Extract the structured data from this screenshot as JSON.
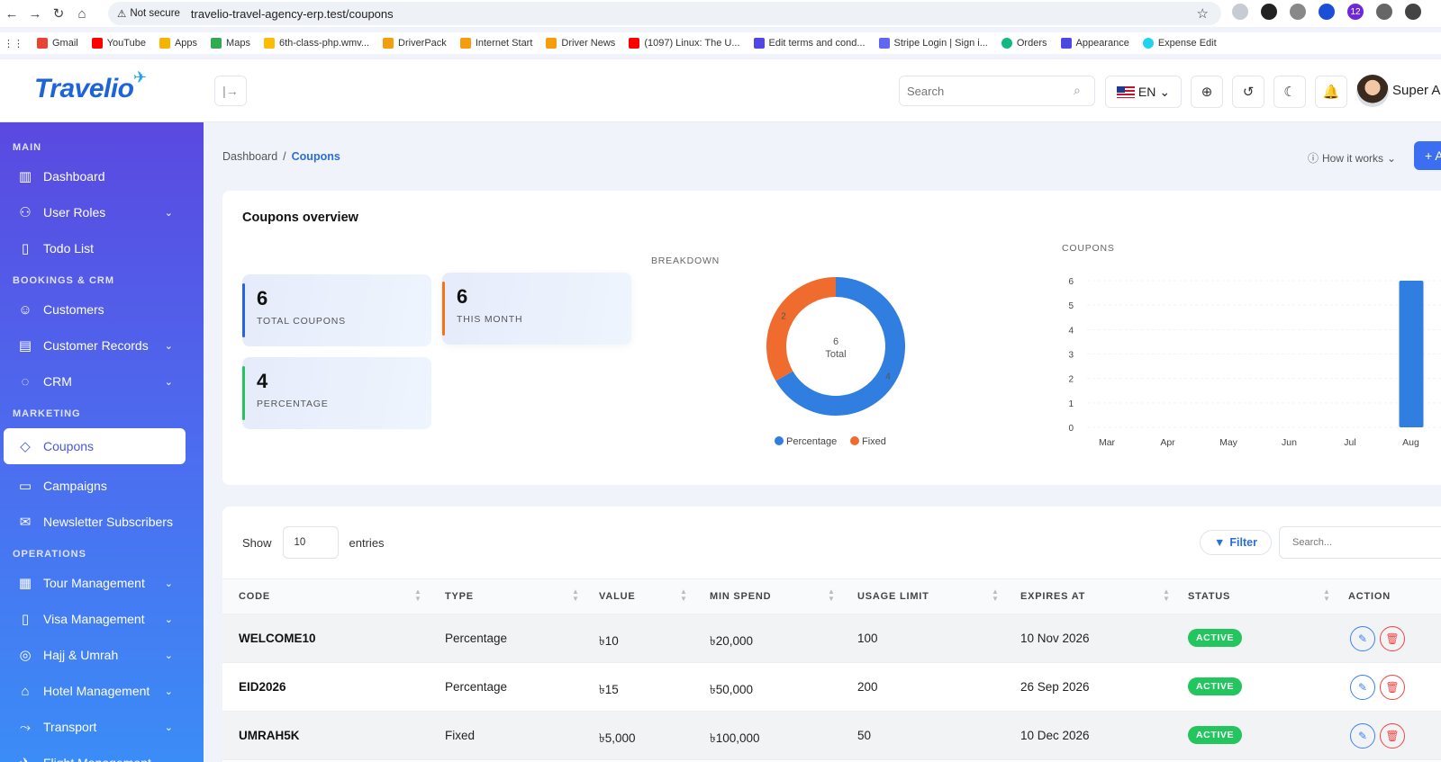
{
  "browser": {
    "not_secure": "Not secure",
    "url": "travelio-travel-agency-erp.test/coupons",
    "bookmarks": [
      "Gmail",
      "YouTube",
      "Apps",
      "Maps",
      "6th-class-php.wmv...",
      "DriverPack",
      "Internet Start",
      "Driver News",
      "(1097) Linux: The U...",
      "Edit terms and cond...",
      "Stripe Login | Sign i...",
      "Orders",
      "Appearance",
      "Expense Edit"
    ],
    "ext_badge": "12"
  },
  "header": {
    "logo": "Travelio",
    "search_placeholder": "Search",
    "lang": "EN",
    "user_name": "Super Ad"
  },
  "sidebar": {
    "sections": [
      {
        "title": "MAIN",
        "items": [
          {
            "label": "Dashboard",
            "icon": "chart-icon",
            "chev": false
          },
          {
            "label": "User Roles",
            "icon": "users-icon",
            "chev": true
          },
          {
            "label": "Todo List",
            "icon": "notebook-icon",
            "chev": false
          }
        ]
      },
      {
        "title": "BOOKINGS & CRM",
        "items": [
          {
            "label": "Customers",
            "icon": "user-icon",
            "chev": false
          },
          {
            "label": "Customer Records",
            "icon": "folder-icon",
            "chev": true
          },
          {
            "label": "CRM",
            "icon": "chat-icon",
            "chev": true
          }
        ]
      },
      {
        "title": "MARKETING",
        "items": [
          {
            "label": "Coupons",
            "icon": "tag-icon",
            "chev": false,
            "active": true
          },
          {
            "label": "Campaigns",
            "icon": "message-icon",
            "chev": false
          },
          {
            "label": "Newsletter Subscribers",
            "icon": "mail-icon",
            "chev": false
          }
        ]
      },
      {
        "title": "OPERATIONS",
        "items": [
          {
            "label": "Tour Management",
            "icon": "map-icon",
            "chev": true
          },
          {
            "label": "Visa Management",
            "icon": "document-icon",
            "chev": true
          },
          {
            "label": "Hajj & Umrah",
            "icon": "compass-icon",
            "chev": true
          },
          {
            "label": "Hotel Management",
            "icon": "home-icon",
            "chev": true
          },
          {
            "label": "Transport",
            "icon": "route-icon",
            "chev": true
          },
          {
            "label": "Flight Management",
            "icon": "plane-icon",
            "chev": true
          }
        ]
      }
    ]
  },
  "breadcrumb": {
    "home": "Dashboard",
    "sep": "/",
    "current": "Coupons"
  },
  "how_it_works": "How it works",
  "add_label": "+ A",
  "overview": {
    "title": "Coupons overview",
    "stats": [
      {
        "num": "6",
        "label": "TOTAL COUPONS",
        "color": "#2563eb"
      },
      {
        "num": "6",
        "label": "THIS MONTH",
        "color": "#f97316"
      },
      {
        "num": "4",
        "label": "PERCENTAGE",
        "color": "#22c55e"
      }
    ],
    "breakdown_label": "BREAKDOWN",
    "coupons_label": "COUPONS"
  },
  "chart_data": [
    {
      "type": "pie",
      "title": "BREAKDOWN",
      "center_value": "6",
      "center_label": "Total",
      "slices": [
        {
          "name": "Percentage",
          "value": 4,
          "color": "#2f7ee0"
        },
        {
          "name": "Fixed",
          "value": 2,
          "color": "#f06c2e"
        }
      ]
    },
    {
      "type": "bar",
      "title": "COUPONS",
      "categories": [
        "Mar",
        "Apr",
        "May",
        "Jun",
        "Jul",
        "Aug"
      ],
      "values": [
        0,
        0,
        0,
        0,
        0,
        6
      ],
      "yticks": [
        "0",
        "1",
        "2",
        "3",
        "4",
        "5",
        "6"
      ],
      "ylim": [
        0,
        6
      ],
      "color": "#2f7ee0"
    }
  ],
  "table": {
    "show": "Show",
    "entries_value": "10",
    "entries": "entries",
    "filter": "Filter",
    "search_placeholder": "Search...",
    "columns": [
      "CODE",
      "TYPE",
      "VALUE",
      "MIN SPEND",
      "USAGE LIMIT",
      "EXPIRES AT",
      "STATUS",
      "ACTION"
    ],
    "rows": [
      {
        "code": "WELCOME10",
        "type": "Percentage",
        "value": "৳10",
        "min_spend": "৳20,000",
        "usage_limit": "100",
        "expires_at": "10 Nov 2026",
        "status": "ACTIVE"
      },
      {
        "code": "EID2026",
        "type": "Percentage",
        "value": "৳15",
        "min_spend": "৳50,000",
        "usage_limit": "200",
        "expires_at": "26 Sep 2026",
        "status": "ACTIVE"
      },
      {
        "code": "UMRAH5K",
        "type": "Fixed",
        "value": "৳5,000",
        "min_spend": "৳100,000",
        "usage_limit": "50",
        "expires_at": "10 Dec 2026",
        "status": "ACTIVE"
      }
    ]
  }
}
